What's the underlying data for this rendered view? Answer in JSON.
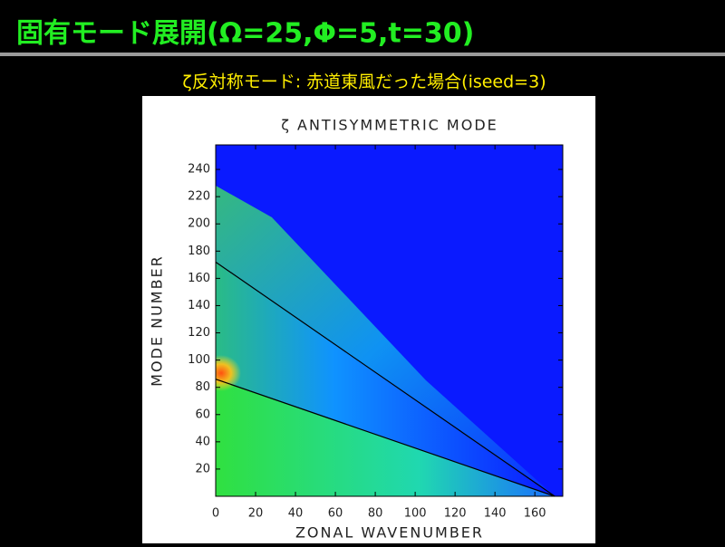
{
  "slide": {
    "title": "固有モード展開(Ω=25,Φ=5,t=30)",
    "subtitle": "ζ反対称モード: 赤道東風だった場合(iseed=3)"
  },
  "chart_data": {
    "type": "heatmap",
    "title": "ζ ANTISYMMETRIC MODE",
    "x_label": "ZONAL WAVENUMBER",
    "y_label": "MODE NUMBER",
    "xlim": [
      0,
      174
    ],
    "ylim": [
      0,
      258
    ],
    "xticks": [
      0,
      20,
      40,
      60,
      80,
      100,
      120,
      140,
      160
    ],
    "yticks": [
      20,
      40,
      60,
      80,
      100,
      120,
      140,
      160,
      180,
      200,
      220,
      240
    ],
    "lines": [
      {
        "color": "#000000",
        "x": [
          0,
          170
        ],
        "values": [
          86,
          0
        ]
      },
      {
        "color": "#000000",
        "x": [
          0,
          170
        ],
        "values": [
          172,
          0
        ]
      }
    ]
  }
}
